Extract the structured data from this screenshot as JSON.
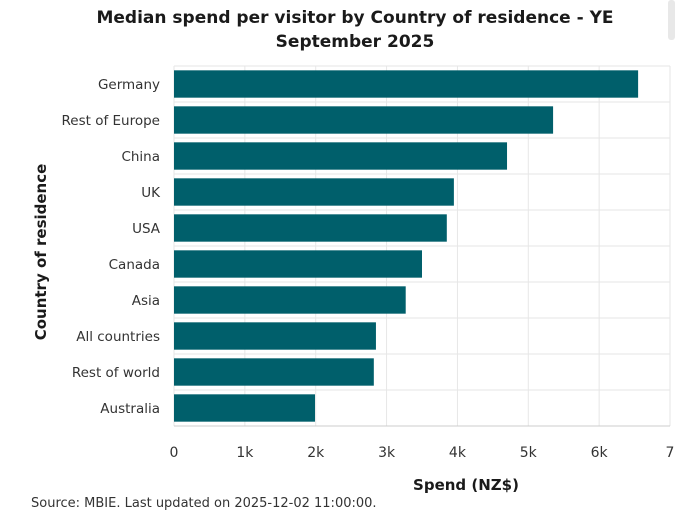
{
  "chart_data": {
    "type": "bar",
    "orientation": "horizontal",
    "title": "Median spend per visitor by Country of residence - YE September 2025",
    "title_lines": [
      "Median spend per visitor by Country of residence - YE",
      "September 2025"
    ],
    "xlabel": "Spend (NZ$)",
    "ylabel": "Country of residence",
    "categories": [
      "Germany",
      "Rest of Europe",
      "China",
      "UK",
      "USA",
      "Canada",
      "Asia",
      "All countries",
      "Rest of world",
      "Australia"
    ],
    "values": [
      6550,
      5350,
      4700,
      3950,
      3850,
      3500,
      3270,
      2850,
      2820,
      1990
    ],
    "xlim": [
      0,
      7000
    ],
    "x_ticks": [
      "0",
      "1k",
      "2k",
      "3k",
      "4k",
      "5k",
      "6k",
      "7"
    ],
    "grid": true,
    "bar_color": "#005f6b"
  },
  "source_note": "Source: MBIE. Last updated on 2025-12-02 11:00:00."
}
